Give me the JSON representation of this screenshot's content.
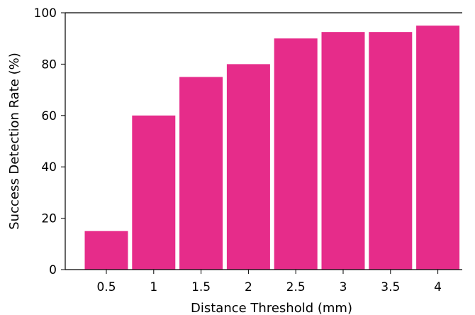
{
  "chart_data": {
    "type": "bar",
    "title": "",
    "xlabel": "Distance Threshold (mm)",
    "ylabel": "Success Detection Rate (%)",
    "categories": [
      "0.5",
      "1",
      "1.5",
      "2",
      "2.5",
      "3",
      "3.5",
      "4"
    ],
    "values": [
      15,
      60,
      75,
      80,
      90,
      92.5,
      92.5,
      95
    ],
    "ylim": [
      0,
      100
    ],
    "yticks": [
      "0",
      "20",
      "40",
      "60",
      "80",
      "100"
    ],
    "grid": false,
    "legend": "none",
    "bar_color": "#E62C8A"
  }
}
